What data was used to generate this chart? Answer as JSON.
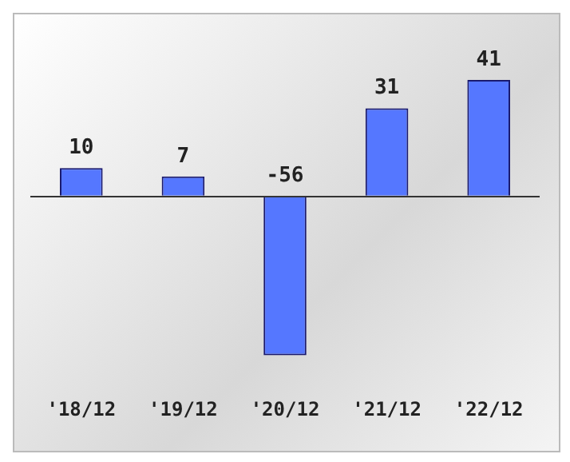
{
  "chart_data": {
    "type": "bar",
    "categories": [
      "'18/12",
      "'19/12",
      "'20/12",
      "'21/12",
      "'22/12"
    ],
    "values": [
      10,
      7,
      -56,
      31,
      41
    ],
    "color": "#5577ff",
    "data_labels": true,
    "grid": false,
    "legend": false,
    "tick_labels": "x"
  }
}
